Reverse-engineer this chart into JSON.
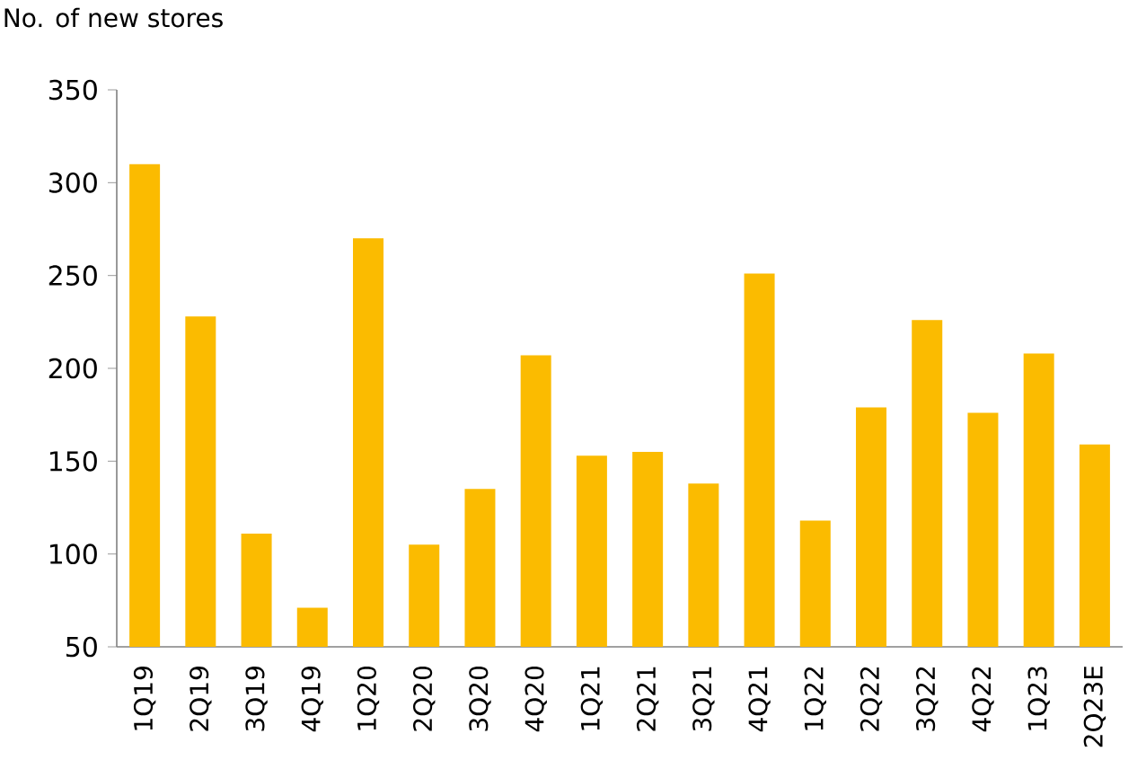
{
  "chart_data": {
    "type": "bar",
    "ylabel": "No. of new stores",
    "categories": [
      "1Q19",
      "2Q19",
      "3Q19",
      "4Q19",
      "1Q20",
      "2Q20",
      "3Q20",
      "4Q20",
      "1Q21",
      "2Q21",
      "3Q21",
      "4Q21",
      "1Q22",
      "2Q22",
      "3Q22",
      "4Q22",
      "1Q23",
      "2Q23E"
    ],
    "values": [
      310,
      228,
      111,
      71,
      270,
      105,
      135,
      207,
      153,
      155,
      138,
      251,
      118,
      179,
      226,
      176,
      208,
      159
    ],
    "color": "#fbbb00",
    "ylim": [
      50,
      350
    ],
    "yticks": [
      50,
      100,
      150,
      200,
      250,
      300,
      350
    ],
    "grid": false
  }
}
